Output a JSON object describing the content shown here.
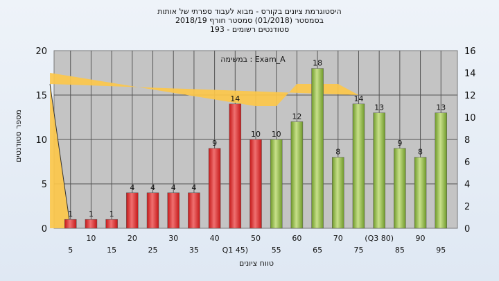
{
  "chart_data": {
    "type": "bar",
    "title_lines": [
      "היסטוגרמת ציונים בקורס - מבוא לעבוד ספרתי של אותות",
      "בסמסטר  (01/2018)  סמסטר חורף 2018/19",
      "סטודנטים רשומים - 193"
    ],
    "annotation": "במשימה : Exam_A",
    "xlabel": "טווח ציונים",
    "ylabel_left": "מספר סטודנטים",
    "ylim_left": [
      0,
      20
    ],
    "ylim_right": [
      0,
      16
    ],
    "yticks_left": [
      "0",
      "5",
      "10",
      "15",
      "20"
    ],
    "yticks_right": [
      "0",
      "2",
      "4",
      "6",
      "8",
      "10",
      "12",
      "14",
      "16"
    ],
    "grid": true,
    "categories": [
      "5",
      "10",
      "15",
      "20",
      "25",
      "30",
      "35",
      "40",
      "Q1 45)",
      "50",
      "55",
      "60",
      "65",
      "70",
      "75",
      "(Q3 80)",
      "85",
      "90",
      "95"
    ],
    "values": [
      1,
      1,
      1,
      4,
      4,
      4,
      4,
      9,
      14,
      10,
      10,
      12,
      18,
      8,
      14,
      13,
      9,
      8,
      13
    ],
    "value_labels": [
      "1",
      "1",
      "1",
      "4",
      "4",
      "4",
      "4",
      "9",
      "14",
      "10",
      "10",
      "12",
      "18",
      "8",
      "14",
      "13",
      "9",
      "8",
      "13"
    ],
    "bar_colors": [
      "red",
      "red",
      "red",
      "red",
      "red",
      "red",
      "red",
      "red",
      "red",
      "red",
      "green",
      "green",
      "green",
      "green",
      "green",
      "green",
      "green",
      "green",
      "green"
    ],
    "band_right_axis": [
      {
        "x": "45",
        "y": 14
      },
      {
        "x": "50",
        "y": 11
      },
      {
        "x": "55",
        "y": 11
      },
      {
        "x": "60",
        "y": 13
      },
      {
        "x": "65",
        "y": 13
      },
      {
        "x": "70",
        "y": 13
      },
      {
        "x": "75",
        "y": 12
      },
      {
        "x": "80",
        "y": 13
      }
    ],
    "colors": {
      "red_light": "#f07070",
      "red_dark": "#c41818",
      "green_light": "#c8e08a",
      "green_dark": "#6f9a2a",
      "band": "#fcc74a",
      "plot_bg": "#c4c4c4",
      "grid": "#555555"
    }
  }
}
